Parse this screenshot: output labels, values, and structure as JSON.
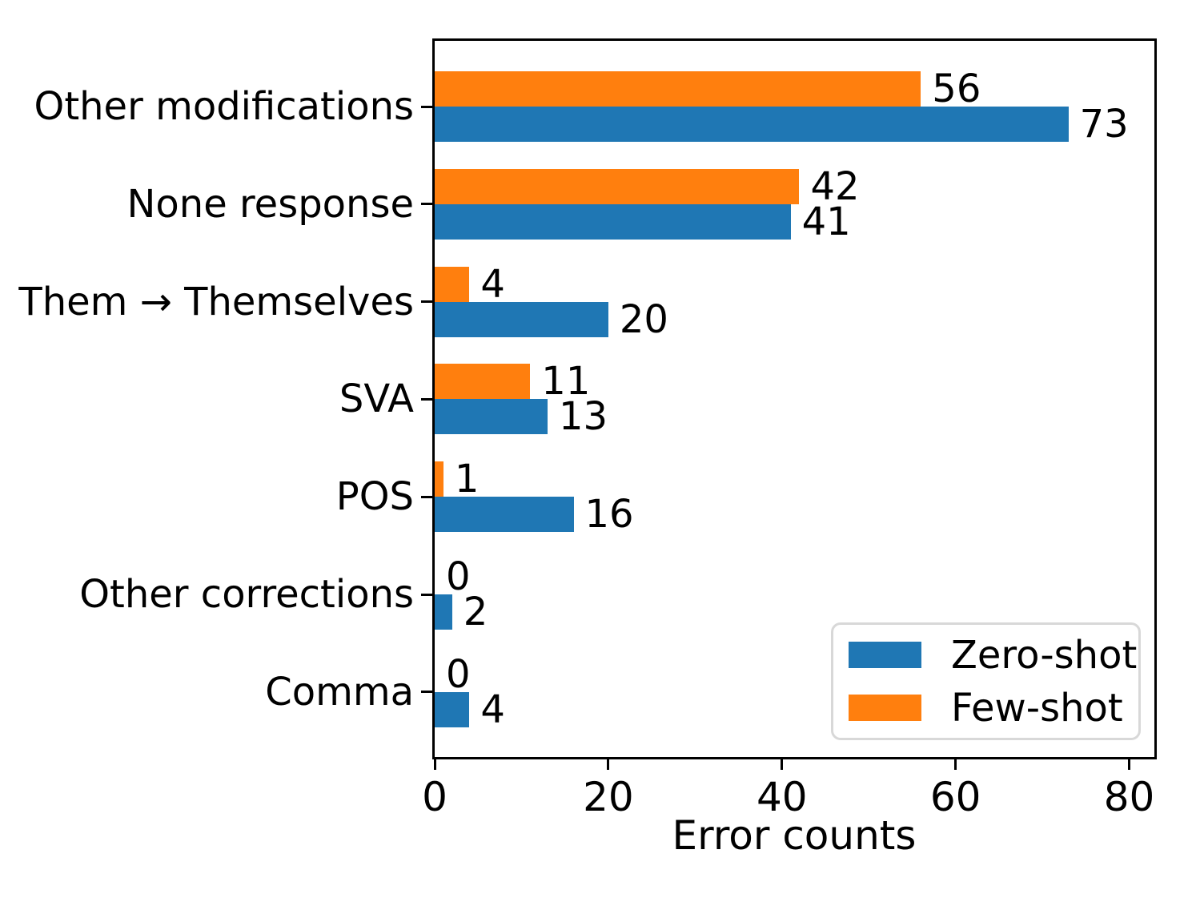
{
  "figure": {
    "background": "#ffffff",
    "spine_color": "#000000",
    "tick_color": "#000000"
  },
  "chart_data": {
    "type": "bar",
    "orientation": "horizontal",
    "xlabel": "Error counts",
    "categories": [
      "Other modifications",
      "None response",
      "Them → Themselves",
      "SVA",
      "POS",
      "Other corrections",
      "Comma"
    ],
    "series": [
      {
        "name": "Zero-shot",
        "color": "#1f77b4",
        "values": [
          73,
          41,
          20,
          13,
          16,
          2,
          4
        ]
      },
      {
        "name": "Few-shot",
        "color": "#ff7f0e",
        "values": [
          56,
          42,
          4,
          11,
          1,
          0,
          0
        ]
      }
    ],
    "xlim": [
      0,
      82.9
    ],
    "x_ticks": [
      0,
      20,
      40,
      60,
      80
    ],
    "bar_labels": true,
    "grid": false,
    "legend": {
      "position": "lower right",
      "entries": [
        "Zero-shot",
        "Few-shot"
      ],
      "border_color": "#d8d8d8"
    }
  }
}
